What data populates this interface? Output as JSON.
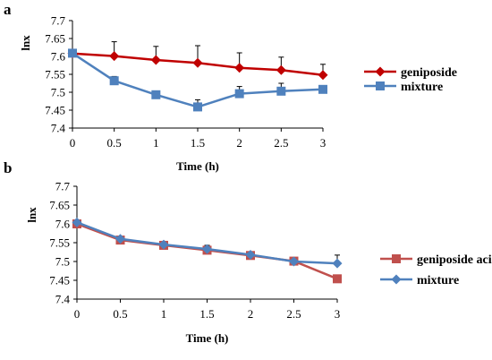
{
  "chart_data": [
    {
      "type": "line",
      "panel_label": "a",
      "xlabel": "Time (h)",
      "ylabel": "lnx",
      "x": [
        0,
        0.5,
        1,
        1.5,
        2,
        2.5,
        3
      ],
      "xticks": [
        "0",
        "0.5",
        "1",
        "1.5",
        "2",
        "2.5",
        "3"
      ],
      "yticks": [
        "7.4",
        "7.45",
        "7.5",
        "7.55",
        "7.6",
        "7.65",
        "7.7"
      ],
      "ylim": [
        7.4,
        7.7
      ],
      "grid": false,
      "legend_position": "right",
      "series": [
        {
          "name": "geniposide",
          "color": "#c00000",
          "marker": "diamond",
          "values": [
            7.608,
            7.601,
            7.59,
            7.582,
            7.568,
            7.562,
            7.548
          ],
          "errors": [
            0,
            0.04,
            0.038,
            0.048,
            0.042,
            0.036,
            0.03
          ]
        },
        {
          "name": "mixture",
          "color": "#4f81bd",
          "marker": "square",
          "values": [
            7.609,
            7.532,
            7.493,
            7.459,
            7.496,
            7.503,
            7.508
          ],
          "errors": [
            0,
            0.012,
            0,
            0.02,
            0.02,
            0.022,
            0
          ]
        }
      ]
    },
    {
      "type": "line",
      "panel_label": "b",
      "xlabel": "Time (h)",
      "ylabel": "lnx",
      "x": [
        0,
        0.5,
        1,
        1.5,
        2,
        2.5,
        3
      ],
      "xticks": [
        "0",
        "0.5",
        "1",
        "1.5",
        "2",
        "2.5",
        "3"
      ],
      "yticks": [
        "7.4",
        "7.45",
        "7.5",
        "7.55",
        "7.6",
        "7.65",
        "7.7"
      ],
      "ylim": [
        7.4,
        7.7
      ],
      "grid": false,
      "legend_position": "right",
      "series": [
        {
          "name": "geniposide acid",
          "color": "#c0504d",
          "marker": "square",
          "values": [
            7.6,
            7.557,
            7.543,
            7.53,
            7.516,
            7.501,
            7.454
          ],
          "errors": [
            0,
            0.006,
            0.008,
            0.013,
            0.008,
            0.008,
            0
          ]
        },
        {
          "name": "mixture",
          "color": "#4f81bd",
          "marker": "diamond",
          "values": [
            7.604,
            7.56,
            7.545,
            7.533,
            7.518,
            7.5,
            7.495
          ],
          "errors": [
            0,
            0,
            0,
            0,
            0,
            0,
            0.022
          ]
        }
      ]
    }
  ]
}
